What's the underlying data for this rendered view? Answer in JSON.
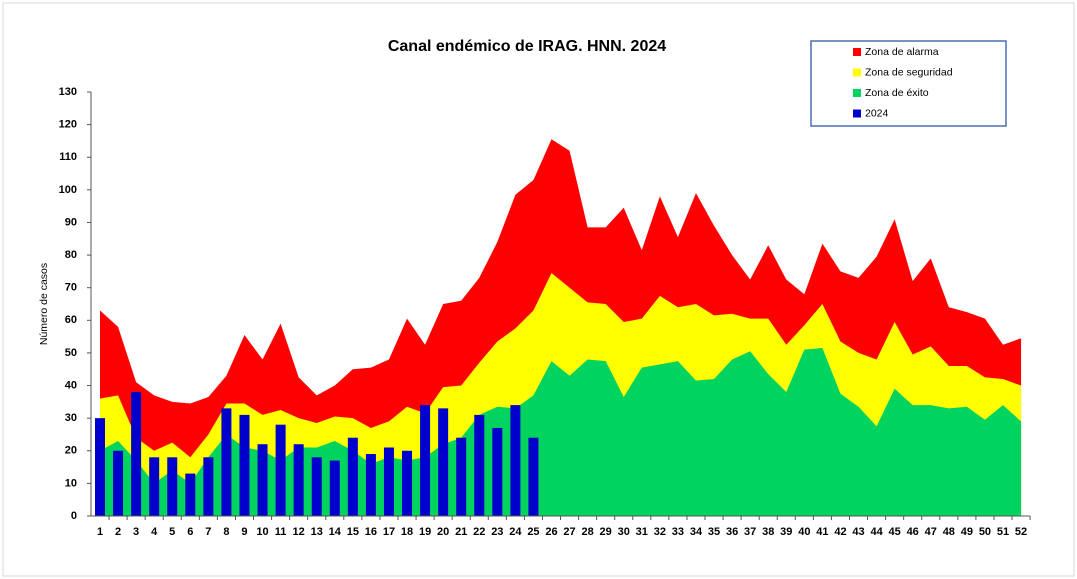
{
  "chart_data": {
    "type": "endemic-channel",
    "title": "Canal endémico de IRAG. HNN. 2024",
    "y_label": "Número de casos",
    "categories": [
      1,
      2,
      3,
      4,
      5,
      6,
      7,
      8,
      9,
      10,
      11,
      12,
      13,
      14,
      15,
      16,
      17,
      18,
      19,
      20,
      21,
      22,
      23,
      24,
      25,
      26,
      27,
      28,
      29,
      30,
      31,
      32,
      33,
      34,
      35,
      36,
      37,
      38,
      39,
      40,
      41,
      42,
      43,
      44,
      45,
      46,
      47,
      48,
      49,
      50,
      51,
      52
    ],
    "ylim": [
      0,
      130
    ],
    "yticks": [
      0,
      10,
      20,
      30,
      40,
      50,
      60,
      70,
      80,
      90,
      100,
      110,
      120,
      130
    ],
    "series": [
      {
        "name": "Zona de alarma",
        "color": "#ff0000",
        "kind": "area",
        "values": [
          63,
          58,
          41,
          37,
          35,
          34.5,
          36.5,
          43,
          55.5,
          48,
          59,
          42.5,
          37,
          40,
          45,
          45.5,
          48,
          60.5,
          52.5,
          65,
          66,
          73,
          84,
          98.5,
          103,
          115.5,
          112,
          88.5,
          88.5,
          94.5,
          81.5,
          98,
          85.5,
          99,
          89,
          80,
          72.5,
          83,
          72.5,
          68,
          83.5,
          75,
          73,
          79.5,
          91,
          72,
          79,
          64,
          62.5,
          60.5,
          52.5,
          54.5
        ]
      },
      {
        "name": "Zona de seguridad",
        "color": "#ffff00",
        "kind": "area",
        "values": [
          36,
          37,
          24,
          20,
          22.5,
          18,
          25,
          34.5,
          34.5,
          31,
          32.5,
          30,
          28.5,
          30.5,
          30,
          27,
          29,
          33.5,
          31.5,
          39.5,
          40,
          47,
          53.5,
          57.5,
          63,
          74.5,
          70,
          65.5,
          65,
          59.5,
          60.5,
          67.5,
          64,
          65,
          61.5,
          62,
          60.5,
          60.5,
          52.5,
          58.5,
          65,
          53.5,
          50,
          48,
          59.5,
          49.5,
          52,
          46,
          46,
          42.5,
          42,
          40
        ]
      },
      {
        "name": "Zona de éxito",
        "color": "#00d45e",
        "kind": "area",
        "values": [
          20,
          23,
          17,
          10,
          14,
          10,
          18,
          25,
          21,
          20,
          17,
          21,
          21,
          23,
          20,
          16,
          18,
          17,
          18,
          22,
          24,
          31,
          33.5,
          33,
          37,
          47.5,
          43,
          48,
          47.5,
          36.5,
          45.5,
          46.5,
          47.5,
          41.5,
          42,
          48,
          50.5,
          43.5,
          38,
          51,
          51.5,
          37.5,
          33.5,
          27.5,
          39,
          34,
          34,
          33,
          33.5,
          29.5,
          34,
          29
        ]
      },
      {
        "name": "2024",
        "color": "#0000cc",
        "kind": "bar",
        "values": [
          30,
          20,
          38,
          18,
          18,
          13,
          18,
          33,
          31,
          22,
          28,
          22,
          18,
          17,
          24,
          19,
          21,
          20,
          34,
          33,
          24,
          31,
          27,
          34,
          24,
          null,
          null,
          null,
          null,
          null,
          null,
          null,
          null,
          null,
          null,
          null,
          null,
          null,
          null,
          null,
          null,
          null,
          null,
          null,
          null,
          null,
          null,
          null,
          null,
          null,
          null,
          null
        ]
      }
    ]
  }
}
